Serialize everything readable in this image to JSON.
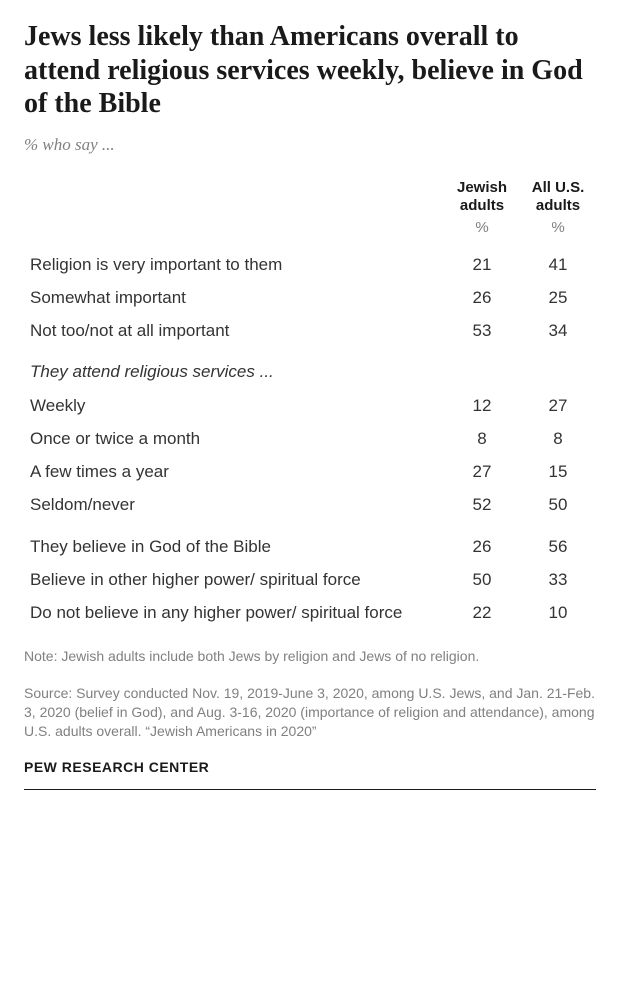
{
  "title": "Jews less likely than Americans overall to attend religious services weekly, believe in God of the Bible",
  "subtitle": "% who say ...",
  "columns": {
    "jewish": "Jewish adults",
    "us": "All U.S. adults",
    "pct": "%"
  },
  "section1": {
    "rows": [
      {
        "label": "Religion is very important to them",
        "jewish": "21",
        "us": "41"
      },
      {
        "label": "Somewhat important",
        "jewish": "26",
        "us": "25"
      },
      {
        "label": "Not too/not at all important",
        "jewish": "53",
        "us": "34"
      }
    ]
  },
  "section2": {
    "header": "They attend religious services ...",
    "rows": [
      {
        "label": "Weekly",
        "jewish": "12",
        "us": "27"
      },
      {
        "label": "Once or twice a month",
        "jewish": "8",
        "us": "8"
      },
      {
        "label": "A few times a year",
        "jewish": "27",
        "us": "15"
      },
      {
        "label": "Seldom/never",
        "jewish": "52",
        "us": "50"
      }
    ]
  },
  "section3": {
    "rows": [
      {
        "label": "They believe in God of the Bible",
        "jewish": "26",
        "us": "56"
      },
      {
        "label": "Believe in other higher power/ spiritual force",
        "jewish": "50",
        "us": "33"
      },
      {
        "label": "Do not believe in any higher power/ spiritual force",
        "jewish": "22",
        "us": "10"
      }
    ]
  },
  "note": "Note: Jewish adults include both Jews by religion and Jews of no religion.",
  "source": "Source: Survey conducted Nov. 19, 2019-June 3, 2020, among U.S. Jews, and Jan. 21-Feb. 3, 2020 (belief in God), and Aug. 3-16, 2020 (importance of religion and attendance), among U.S. adults overall. “Jewish Americans in 2020”",
  "footer": "PEW RESEARCH CENTER"
}
